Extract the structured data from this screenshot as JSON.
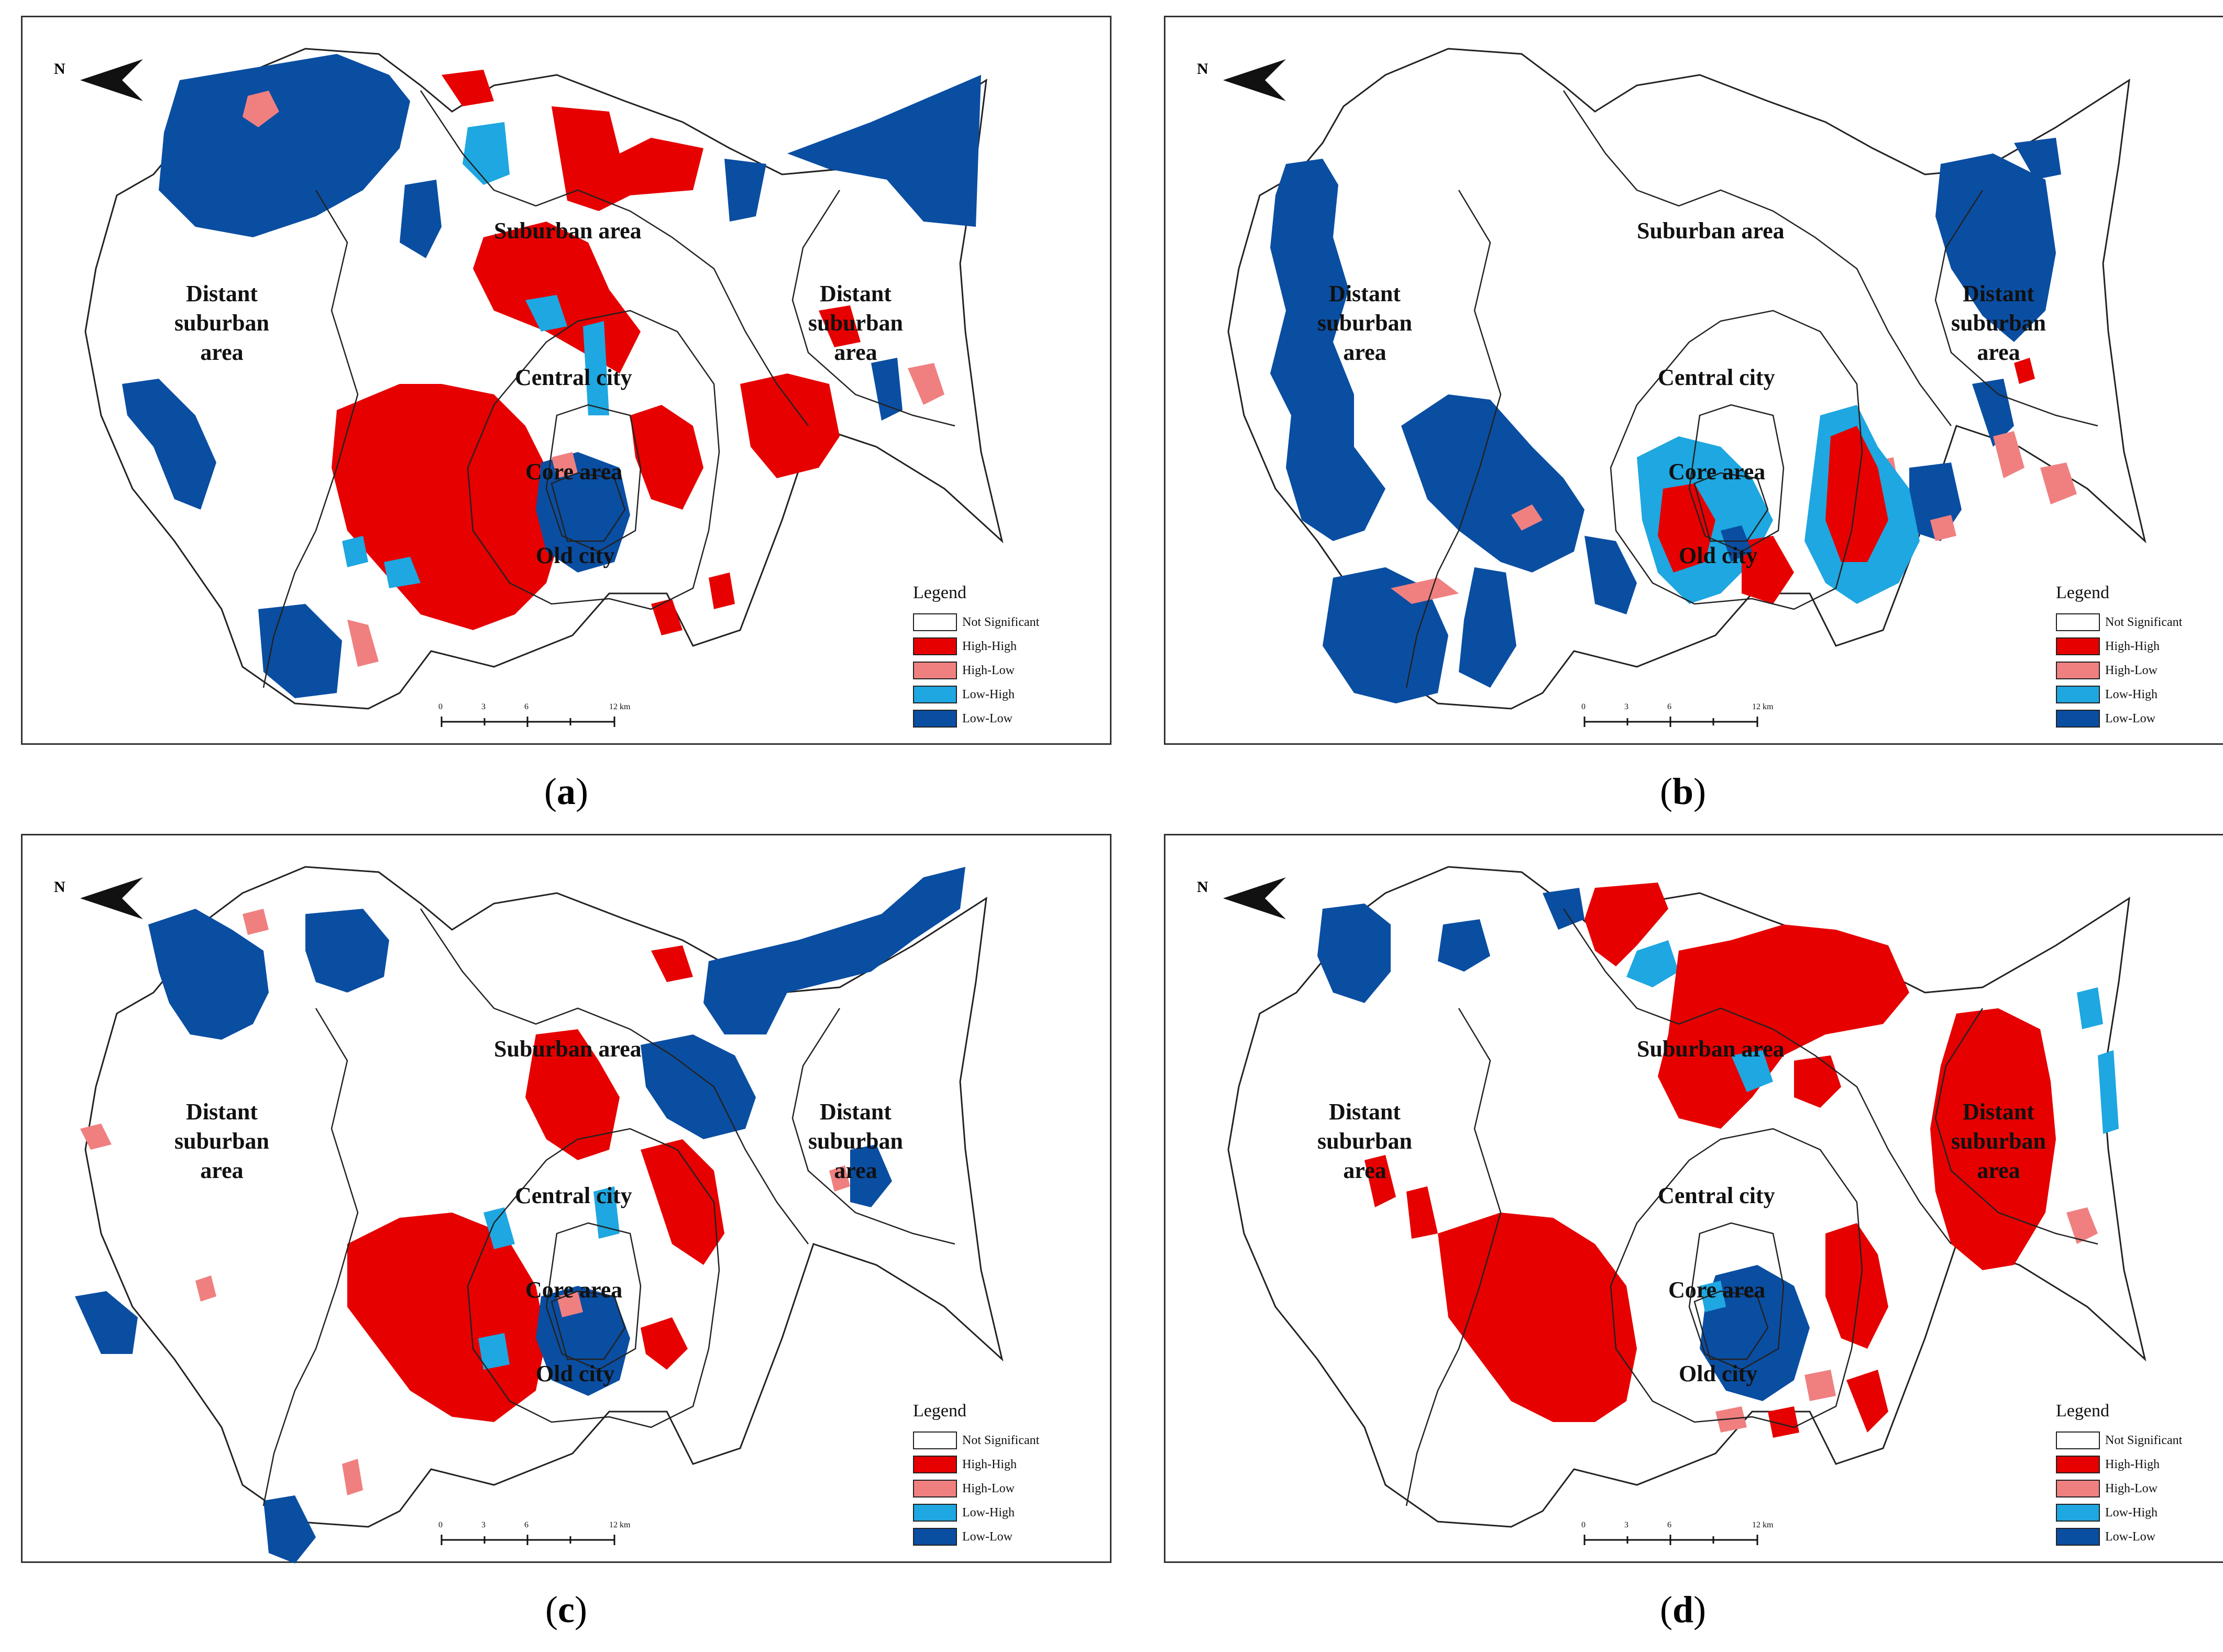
{
  "panels": [
    {
      "id": "a",
      "caption_letter": "a"
    },
    {
      "id": "b",
      "caption_letter": "b"
    },
    {
      "id": "c",
      "caption_letter": "c"
    },
    {
      "id": "d",
      "caption_letter": "d"
    }
  ],
  "labels": {
    "suburban": "Suburban area",
    "distant_line1": "Distant",
    "distant_line2": "suburban",
    "distant_line3": "area",
    "central": "Central city",
    "core": "Core area",
    "old": "Old city"
  },
  "legend": {
    "title": "Legend",
    "items": [
      {
        "label": "Not Significant",
        "color": "#ffffff"
      },
      {
        "label": "High-High",
        "color": "#e60000"
      },
      {
        "label": "High-Low",
        "color": "#f08080"
      },
      {
        "label": "Low-High",
        "color": "#1ea7e1"
      },
      {
        "label": "Low-Low",
        "color": "#0a4ea2"
      }
    ]
  },
  "scale": {
    "ticks": [
      "0",
      "3",
      "6",
      "12 km"
    ]
  },
  "north_letter": "N",
  "colors": {
    "hh": "#e60000",
    "hl": "#f08080",
    "lh": "#1ea7e1",
    "ll": "#0a4ea2"
  }
}
